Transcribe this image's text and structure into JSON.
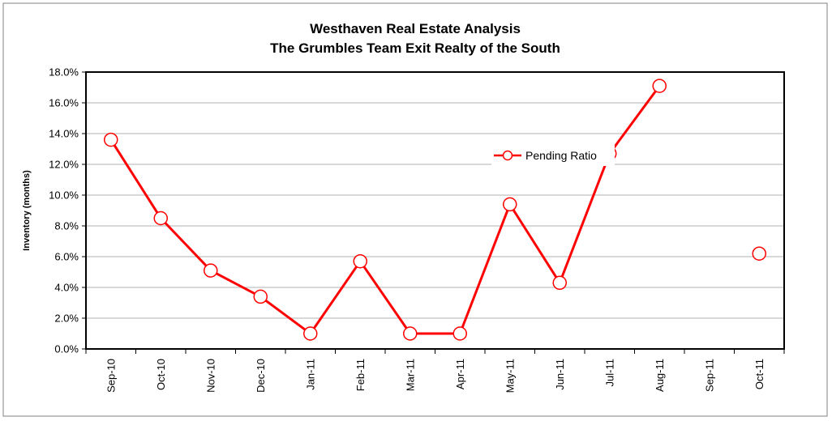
{
  "chart_data": {
    "type": "line",
    "title": "Westhaven Real Estate Analysis",
    "subtitle": "The Grumbles Team Exit Realty of the South",
    "ylabel": "Inventory (months)",
    "xlabel": "",
    "categories": [
      "Sep-10",
      "Oct-10",
      "Nov-10",
      "Dec-10",
      "Jan-11",
      "Feb-11",
      "Mar-11",
      "Apr-11",
      "May-11",
      "Jun-11",
      "Jul-11",
      "Aug-11",
      "Sep-11",
      "Oct-11"
    ],
    "ylim": [
      0,
      18
    ],
    "ytick_step": 2,
    "ytick_format": "percent_one_decimal",
    "grid": true,
    "legend_position": "center-right",
    "series": [
      {
        "name": "Pending Ratio",
        "color": "#ff0000",
        "marker": "circle-open",
        "values": [
          13.6,
          8.5,
          5.1,
          3.4,
          1.0,
          5.7,
          1.0,
          1.0,
          9.4,
          4.3,
          12.7,
          17.1,
          null,
          6.2
        ]
      }
    ]
  }
}
